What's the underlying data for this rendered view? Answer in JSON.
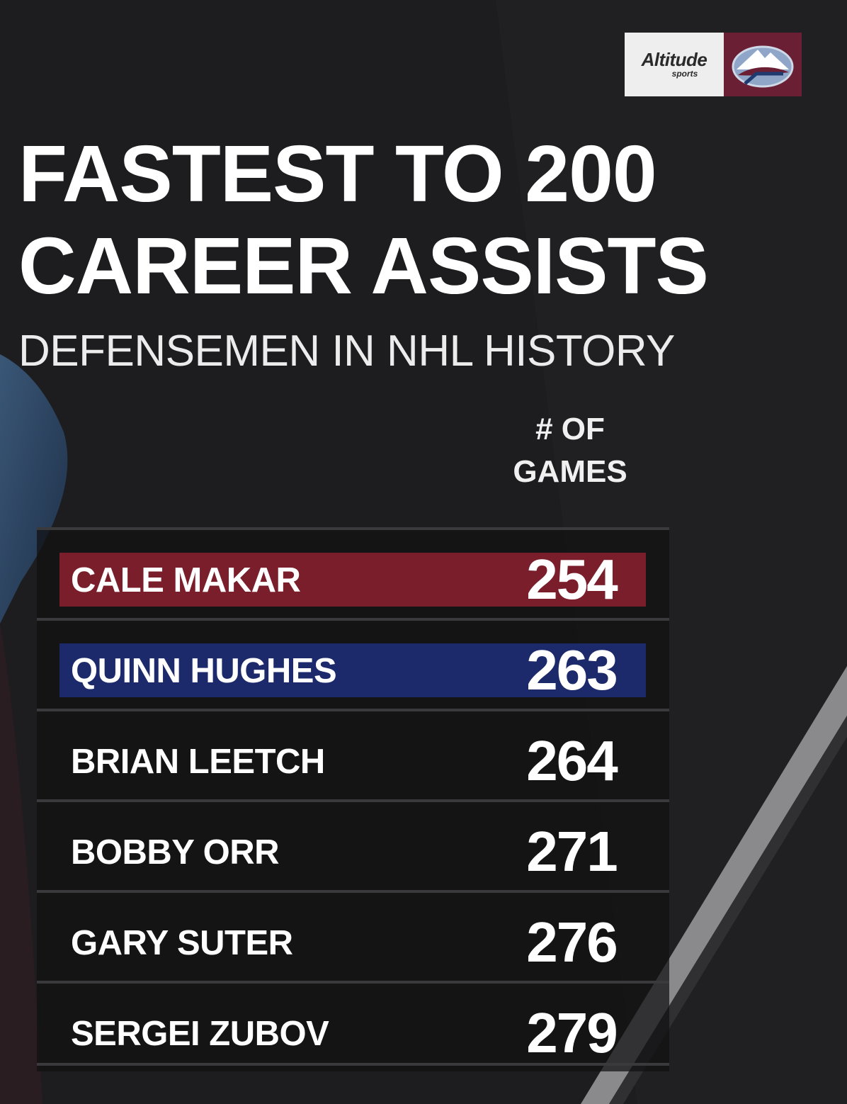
{
  "logo": {
    "brand_line1": "Altitude",
    "brand_line2": "sports",
    "team_logo": "colorado-avalanche-logo"
  },
  "title_line1": "FASTEST TO 200",
  "title_line2": "CAREER ASSISTS",
  "subtitle": "DEFENSEMEN IN NHL HISTORY",
  "column_header_line1": "# OF",
  "column_header_line2": "GAMES",
  "rows": [
    {
      "name": "CALE MAKAR",
      "games": "254",
      "highlight": "#7a1e2b"
    },
    {
      "name": "QUINN HUGHES",
      "games": "263",
      "highlight": "#1c2a6b"
    },
    {
      "name": "BRIAN LEETCH",
      "games": "264",
      "highlight": ""
    },
    {
      "name": "BOBBY ORR",
      "games": "271",
      "highlight": ""
    },
    {
      "name": "GARY SUTER",
      "games": "276",
      "highlight": ""
    },
    {
      "name": "SERGEI ZUBOV",
      "games": "279",
      "highlight": ""
    }
  ],
  "colors": {
    "background": "#1c1c1e",
    "avalanche_burgundy": "#7a1e2b",
    "canucks_blue": "#1c2a6b"
  }
}
